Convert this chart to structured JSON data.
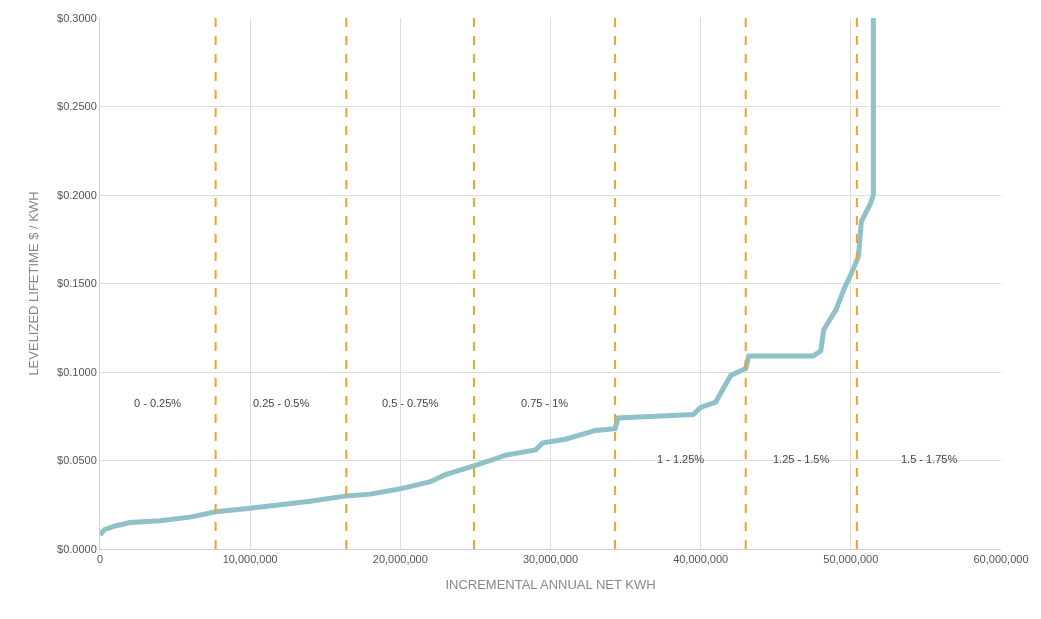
{
  "chart_data": {
    "type": "line",
    "xlabel": "INCREMENTAL ANNUAL NET KWH",
    "ylabel": "LEVELIZED LIFETIME $ / KWH",
    "series": [
      {
        "color": "#8fc1c9",
        "x": [
          0,
          300000,
          1000000,
          2000000,
          4000000,
          6000000,
          7700000,
          10000000,
          12000000,
          14000000,
          16400000,
          18000000,
          20000000,
          22000000,
          23000000,
          24900000,
          26000000,
          27000000,
          29000000,
          29500000,
          31000000,
          33000000,
          34300000,
          34500000,
          37000000,
          39500000,
          40000000,
          41000000,
          42000000,
          43000000,
          43200000,
          45000000,
          47500000,
          48000000,
          48200000,
          49000000,
          49600000,
          50000000,
          50500000,
          50700000,
          51300000,
          51500000,
          51500000
        ],
        "values": [
          0.008,
          0.011,
          0.013,
          0.015,
          0.016,
          0.018,
          0.021,
          0.023,
          0.025,
          0.027,
          0.03,
          0.031,
          0.034,
          0.038,
          0.042,
          0.047,
          0.05,
          0.053,
          0.056,
          0.06,
          0.062,
          0.067,
          0.068,
          0.074,
          0.075,
          0.076,
          0.08,
          0.083,
          0.098,
          0.102,
          0.109,
          0.109,
          0.109,
          0.112,
          0.124,
          0.135,
          0.148,
          0.155,
          0.165,
          0.185,
          0.195,
          0.2,
          0.3
        ]
      }
    ],
    "xlim": [
      0,
      60000000
    ],
    "xticks": [
      {
        "value": 0,
        "label": "0"
      },
      {
        "value": 10000000,
        "label": "10,000,000"
      },
      {
        "value": 20000000,
        "label": "20,000,000"
      },
      {
        "value": 30000000,
        "label": "30,000,000"
      },
      {
        "value": 40000000,
        "label": "40,000,000"
      },
      {
        "value": 50000000,
        "label": "50,000,000"
      },
      {
        "value": 60000000,
        "label": "60,000,000"
      }
    ],
    "ylim": [
      0,
      0.3
    ],
    "yticks": [
      {
        "value": 0,
        "label": "$0.0000"
      },
      {
        "value": 0.05,
        "label": "$0.0500"
      },
      {
        "value": 0.1,
        "label": "$0.1000"
      },
      {
        "value": 0.15,
        "label": "$0.1500"
      },
      {
        "value": 0.2,
        "label": "$0.2000"
      },
      {
        "value": 0.25,
        "label": "$0.2500"
      },
      {
        "value": 0.3,
        "label": "$0.3000"
      }
    ],
    "grid": true,
    "line_style": "solid",
    "marker": "none",
    "ref_lines": [
      {
        "axis": "x",
        "value": 7700000,
        "color": "#f0a030",
        "line_style": "dashed"
      },
      {
        "axis": "x",
        "value": 16400000,
        "color": "#f0a030",
        "line_style": "dashed"
      },
      {
        "axis": "x",
        "value": 24900000,
        "color": "#f0a030",
        "line_style": "dashed"
      },
      {
        "axis": "x",
        "value": 34300000,
        "color": "#f0a030",
        "line_style": "dashed"
      },
      {
        "axis": "x",
        "value": 43000000,
        "color": "#f0a030",
        "line_style": "dashed"
      },
      {
        "axis": "x",
        "value": 50400000,
        "color": "#f0a030",
        "line_style": "dashed"
      }
    ],
    "annotations": [
      "0 - 0.25%",
      "0.25 - 0.5%",
      "0.5 - 0.75%",
      "0.75 - 1%",
      "1 - 1.25%",
      "1.25 - 1.5%",
      "1.5 - 1.75%"
    ]
  }
}
